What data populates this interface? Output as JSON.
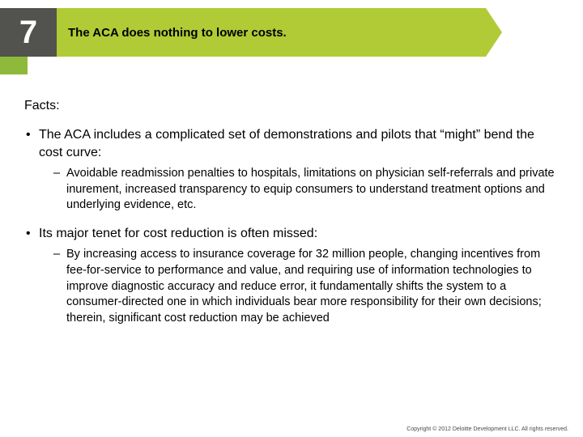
{
  "colors": {
    "number_bg": "#52524f",
    "number_fg": "#ffffff",
    "title_bg": "#b0cb36",
    "title_fg": "#000000",
    "accent": "#8fb93a",
    "body_fg": "#000000"
  },
  "header": {
    "number": "7",
    "title": "The ACA does nothing to lower costs."
  },
  "facts_label": "Facts:",
  "bullets": [
    {
      "text": "The ACA includes a complicated set of demonstrations and pilots that “might” bend the cost curve:",
      "sub": [
        "Avoidable readmission penalties to hospitals, limitations on physician self-referrals and private inurement, increased transparency to equip consumers to understand treatment options and underlying evidence, etc."
      ]
    },
    {
      "text": "Its major tenet for cost reduction is often missed:",
      "sub": [
        "By increasing access to insurance coverage for 32 million people, changing incentives from fee-for-service to performance and value, and requiring use of information technologies to improve diagnostic accuracy and reduce error, it fundamentally shifts the system to a consumer-directed one in which individuals bear more responsibility for their own decisions; therein, significant cost reduction may be achieved"
      ]
    }
  ],
  "footer": "Copyright © 2012 Deloitte Development LLC. All rights reserved."
}
